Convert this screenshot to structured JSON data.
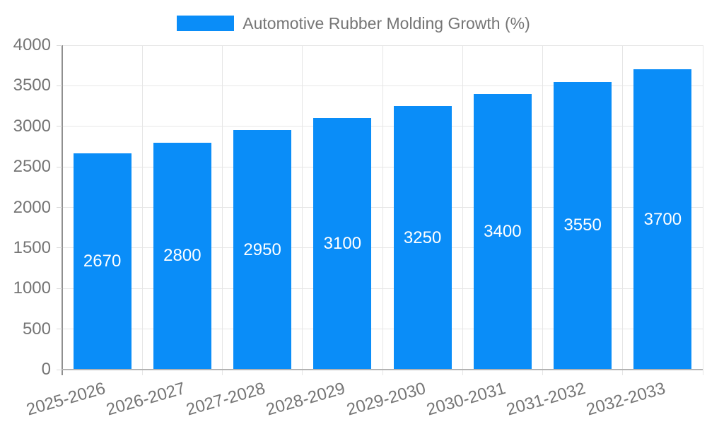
{
  "legend": {
    "label": "Automotive Rubber Molding Growth (%)"
  },
  "chart_data": {
    "type": "bar",
    "title": "Automotive Rubber Molding Growth (%)",
    "categories": [
      "2025-2026",
      "2026-2027",
      "2027-2028",
      "2028-2029",
      "2029-2030",
      "2030-2031",
      "2031-2032",
      "2032-2033"
    ],
    "values": [
      2670,
      2800,
      2950,
      3100,
      3250,
      3400,
      3550,
      3700
    ],
    "value_labels": [
      "2670",
      "2800",
      "2950",
      "3100",
      "3250",
      "3400",
      "3550",
      "3700"
    ],
    "xlabel": "",
    "ylabel": "",
    "ylim": [
      0,
      4000
    ],
    "yticks": [
      0,
      500,
      1000,
      1500,
      2000,
      2500,
      3000,
      3500,
      4000
    ],
    "grid": true,
    "legend_position": "top",
    "colors": {
      "bar": "#0a8df8",
      "grid": "#e6e6e6",
      "y_axis_line": "#8f8f8f",
      "x_axis_line": "#b3b3b3",
      "tick": "#d9d9d9",
      "axis_text": "#757575",
      "value_label": "#ffffff"
    }
  }
}
